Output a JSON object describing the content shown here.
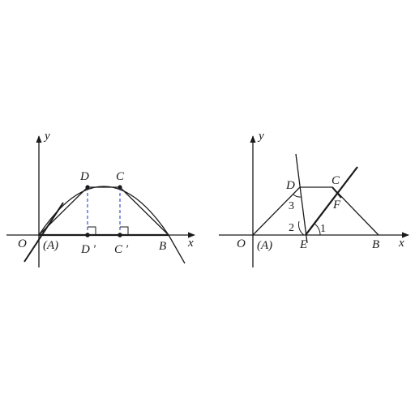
{
  "figures": [
    {
      "id": "left",
      "axis_labels": {
        "x": "x",
        "y": "y"
      },
      "points": {
        "O": "O",
        "A": "(A)",
        "D": "D",
        "C": "C",
        "D_prime": "D ′",
        "C_prime": "C ′",
        "B": "B"
      }
    },
    {
      "id": "right",
      "axis_labels": {
        "x": "x",
        "y": "y"
      },
      "points": {
        "O": "O",
        "A": "(A)",
        "D": "D",
        "C": "C",
        "F": "F",
        "E": "E",
        "B": "B"
      },
      "angles": {
        "one": "1",
        "two": "2",
        "three": "3"
      }
    }
  ],
  "colors": {
    "ink": "#1a1a1a",
    "dashed": "#3a4fd0"
  }
}
